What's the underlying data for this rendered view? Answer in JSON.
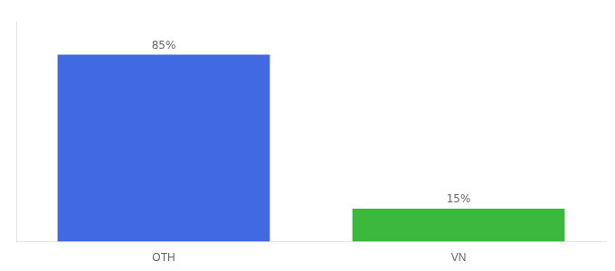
{
  "chart_data": {
    "type": "bar",
    "categories": [
      "OTH",
      "VN"
    ],
    "values": [
      85,
      15
    ],
    "value_labels": [
      "85%",
      "15%"
    ],
    "data_labels": true,
    "colors": [
      "#4169E1",
      "#3CB83C"
    ],
    "ylim": [
      0,
      100
    ],
    "tick_labels": "x",
    "grid": false
  }
}
